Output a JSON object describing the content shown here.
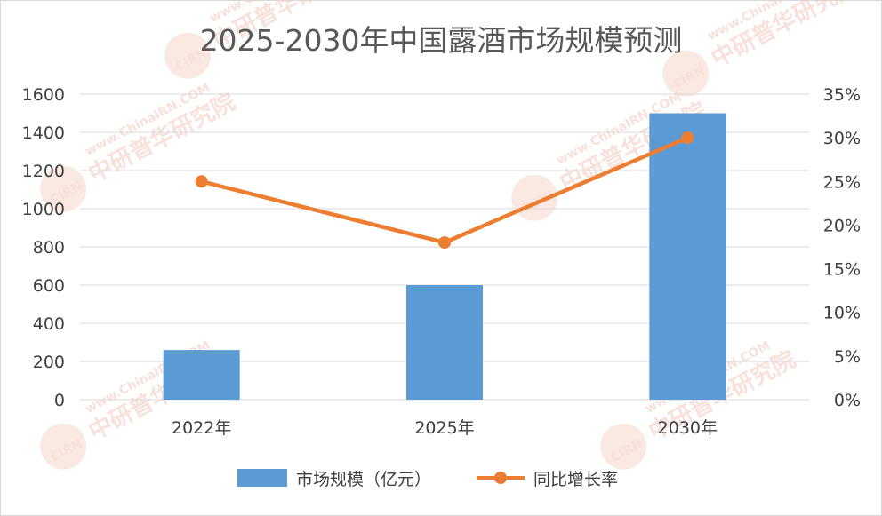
{
  "chart_data": {
    "type": "bar+line",
    "title": "2025-2030年中国露酒市场规模预测",
    "categories": [
      "2022年",
      "2025年",
      "2030年"
    ],
    "series": [
      {
        "name": "市场规模（亿元）",
        "type": "bar",
        "axis": "left",
        "values": [
          260,
          600,
          1500
        ]
      },
      {
        "name": "同比增长率",
        "type": "line",
        "axis": "right",
        "values": [
          0.25,
          0.18,
          0.3
        ]
      }
    ],
    "left_axis": {
      "min": 0,
      "max": 1600,
      "step": 200,
      "tick_labels": [
        "0",
        "200",
        "400",
        "600",
        "800",
        "1000",
        "1200",
        "1400",
        "1600"
      ]
    },
    "right_axis": {
      "min": 0,
      "max": 0.35,
      "step": 0.05,
      "tick_labels": [
        "0%",
        "5%",
        "10%",
        "15%",
        "20%",
        "25%",
        "30%",
        "35%"
      ]
    },
    "grid": true,
    "legend_position": "bottom"
  },
  "watermark": {
    "brand": "CIRN",
    "cn": "中研普华研究院",
    "url": "www.ChinaIRN.COM"
  },
  "colors": {
    "bar": "#5b9bd5",
    "line": "#ed7d31",
    "grid": "#d9d9d9"
  }
}
